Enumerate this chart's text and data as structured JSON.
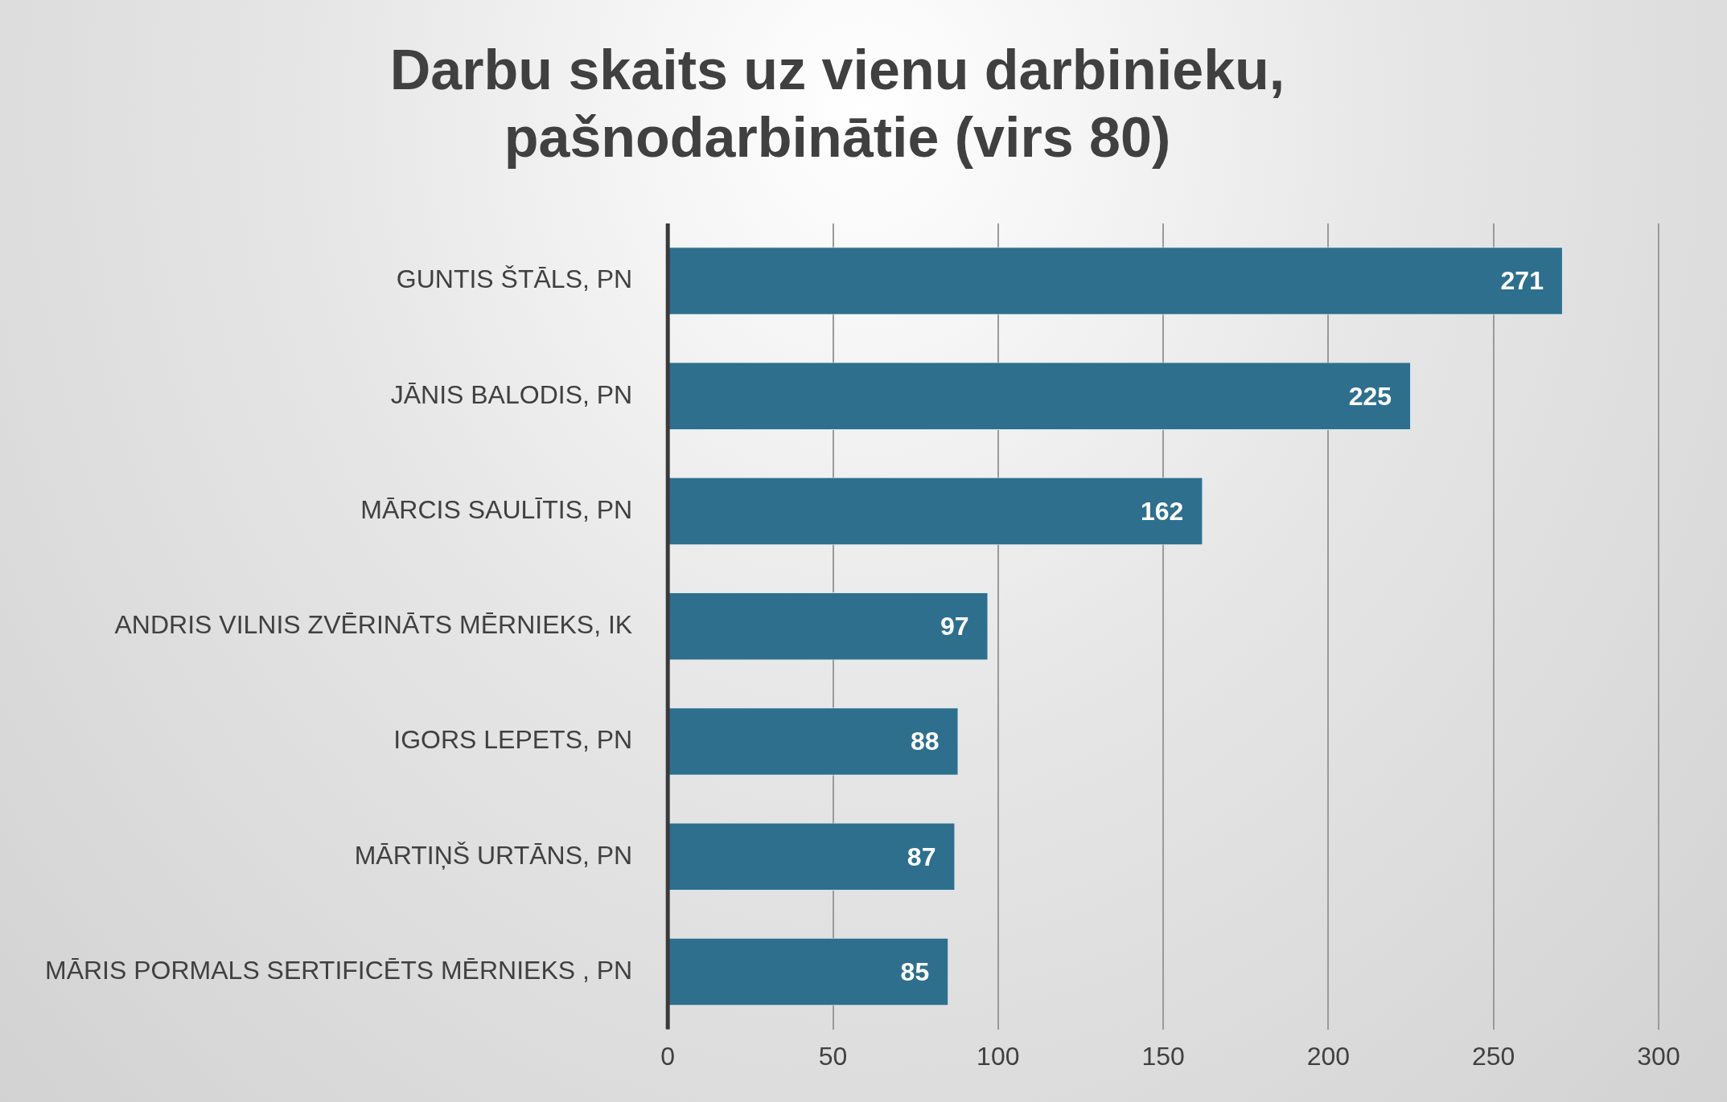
{
  "chart_data": {
    "type": "bar",
    "orientation": "horizontal",
    "title": "Darbu skaits uz vienu darbinieku, pašnodarbinātie (virs 80)",
    "categories": [
      "GUNTIS ŠTĀLS, PN",
      "JĀNIS BALODIS, PN",
      "MĀRCIS SAULĪTIS, PN",
      "ANDRIS VILNIS ZVĒRINĀTS MĒRNIEKS, IK",
      "IGORS LEPETS, PN",
      "MĀRTIŅŠ URTĀNS, PN",
      "MĀRIS PORMALS SERTIFICĒTS MĒRNIEKS , PN"
    ],
    "values": [
      271,
      225,
      162,
      97,
      88,
      87,
      85
    ],
    "color": "#2e6f8e",
    "xlim": [
      0,
      300
    ],
    "xticks": [
      0,
      50,
      100,
      150,
      200,
      250,
      300
    ],
    "grid": "x",
    "data_labels": true,
    "legend": false
  }
}
